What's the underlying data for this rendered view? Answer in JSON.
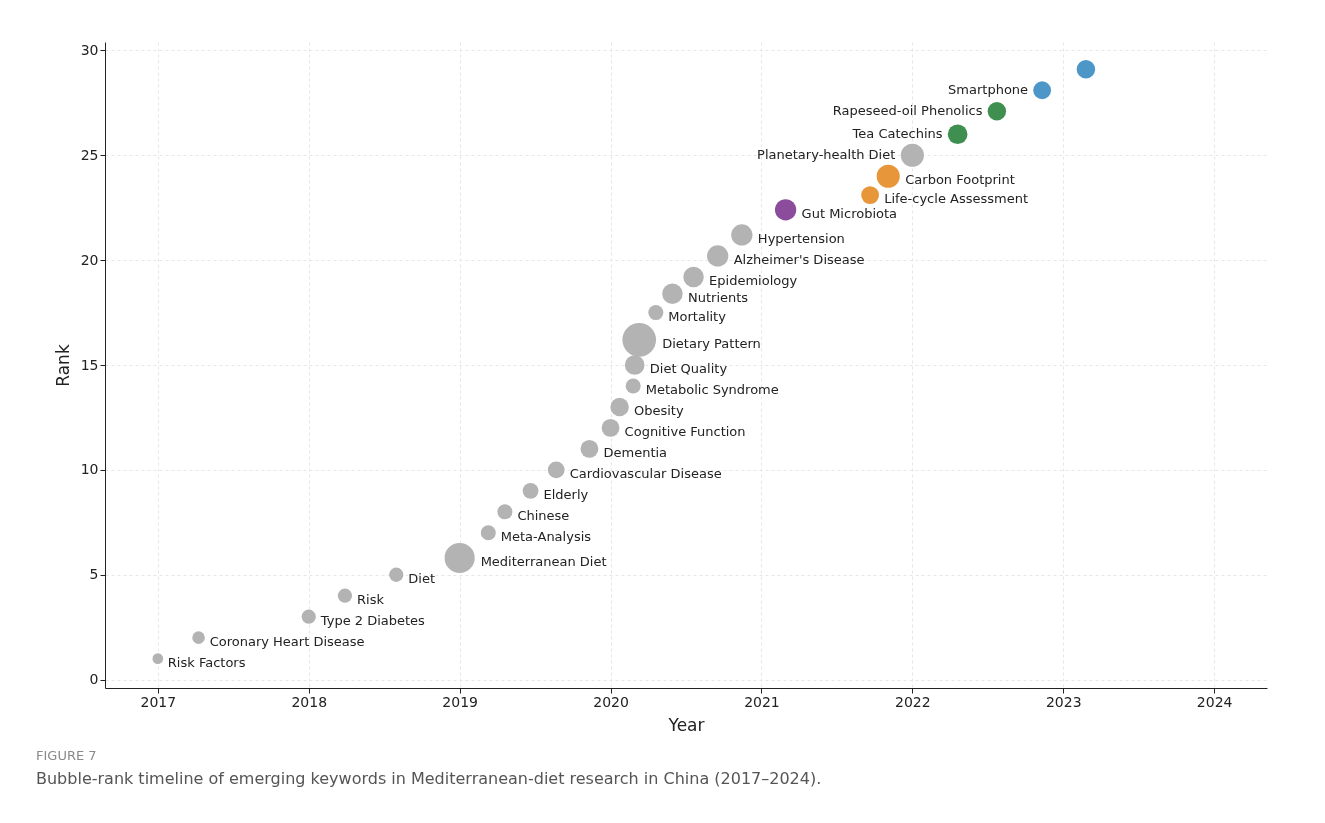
{
  "chart_data": {
    "type": "bubble",
    "xlabel": "Year",
    "ylabel": "Rank",
    "xlim": [
      2016.65,
      2024.35
    ],
    "xticks": [
      2017,
      2018,
      2019,
      2020,
      2021,
      2022,
      2023,
      2024
    ],
    "ylim": [
      -0.4,
      30.4
    ],
    "yticks": [
      0,
      5,
      10,
      15,
      20,
      25,
      30
    ],
    "grid": true,
    "marker": "circle",
    "x": [
      2017.0,
      2017.27,
      2018.0,
      2018.24,
      2018.58,
      2019.0,
      2019.19,
      2019.3,
      2019.47,
      2019.64,
      2019.86,
      2020.0,
      2020.06,
      2020.15,
      2020.16,
      2020.19,
      2020.3,
      2020.41,
      2020.55,
      2020.71,
      2020.87,
      2021.16,
      2021.72,
      2021.84,
      2022.0,
      2022.3,
      2022.56,
      2022.86,
      2023.15
    ],
    "values": [
      1,
      2,
      3,
      4,
      5,
      5.8,
      7,
      8,
      9,
      10,
      11,
      12,
      13,
      14,
      15,
      16.2,
      17.5,
      18.4,
      19.2,
      20.2,
      21.2,
      22.4,
      23.1,
      24,
      25,
      26,
      27.1,
      28.1,
      29.1
    ],
    "sizes": [
      0.1,
      0.14,
      0.18,
      0.18,
      0.18,
      0.8,
      0.2,
      0.2,
      0.22,
      0.25,
      0.28,
      0.28,
      0.3,
      0.2,
      0.34,
      1,
      0.2,
      0.37,
      0.37,
      0.4,
      0.4,
      0.4,
      0.28,
      0.47,
      0.47,
      0.34,
      0.3,
      0.28,
      0.3
    ],
    "colors": [
      "#b3b3b3",
      "#b3b3b3",
      "#b3b3b3",
      "#b3b3b3",
      "#b3b3b3",
      "#b3b3b3",
      "#b3b3b3",
      "#b3b3b3",
      "#b3b3b3",
      "#b3b3b3",
      "#b3b3b3",
      "#b3b3b3",
      "#b3b3b3",
      "#b3b3b3",
      "#b3b3b3",
      "#b3b3b3",
      "#b3b3b3",
      "#b3b3b3",
      "#b3b3b3",
      "#b3b3b3",
      "#b3b3b3",
      "#8b4c9b",
      "#e8963a",
      "#e8963a",
      "#b3b3b3",
      "#3f8f50",
      "#3f8f50",
      "#4c97c8",
      "#4c97c8"
    ],
    "annotations": [
      {
        "text": "Risk Factors",
        "x": 2017.0,
        "y": 1
      },
      {
        "text": "Coronary Heart Disease",
        "x": 2017.27,
        "y": 2
      },
      {
        "text": "Type 2 Diabetes",
        "x": 2018.0,
        "y": 3
      },
      {
        "text": "Risk",
        "x": 2018.24,
        "y": 4
      },
      {
        "text": "Diet",
        "x": 2018.58,
        "y": 5
      },
      {
        "text": "Mediterranean Diet",
        "x": 2019.0,
        "y": 5.8
      },
      {
        "text": "Meta-Analysis",
        "x": 2019.19,
        "y": 7
      },
      {
        "text": "Chinese",
        "x": 2019.3,
        "y": 8
      },
      {
        "text": "Elderly",
        "x": 2019.47,
        "y": 9
      },
      {
        "text": "Cardiovascular Disease",
        "x": 2019.64,
        "y": 10
      },
      {
        "text": "Dementia",
        "x": 2019.86,
        "y": 11
      },
      {
        "text": "Cognitive Function",
        "x": 2020.0,
        "y": 12
      },
      {
        "text": "Obesity",
        "x": 2020.06,
        "y": 13
      },
      {
        "text": "Metabolic Syndrome",
        "x": 2020.15,
        "y": 14
      },
      {
        "text": "Diet Quality",
        "x": 2020.16,
        "y": 15
      },
      {
        "text": "Dietary Pattern",
        "x": 2020.19,
        "y": 16.2
      },
      {
        "text": "Mortality",
        "x": 2020.3,
        "y": 17.5
      },
      {
        "text": "Nutrients",
        "x": 2020.41,
        "y": 18.4
      },
      {
        "text": "Epidemiology",
        "x": 2020.55,
        "y": 19.2
      },
      {
        "text": "Alzheimer's Disease",
        "x": 2020.71,
        "y": 20.2
      },
      {
        "text": "Hypertension",
        "x": 2020.87,
        "y": 21.2
      },
      {
        "text": "Gut Microbiota",
        "x": 2021.16,
        "y": 22.4
      },
      {
        "text": "Life-cycle Assessment",
        "x": 2021.72,
        "y": 23.1
      },
      {
        "text": "Carbon Footprint",
        "x": 2021.84,
        "y": 24
      },
      {
        "text": "Planetary-health Diet",
        "x": 2022.0,
        "y": 25
      },
      {
        "text": "Tea Catechins",
        "x": 2022.3,
        "y": 26
      },
      {
        "text": "Rapeseed-oil Phenolics",
        "x": 2022.56,
        "y": 27.1
      },
      {
        "text": "Smartphone",
        "x": 2022.86,
        "y": 28.1
      },
      "FIGURE 7",
      "Bubble-rank timeline of emerging keywords in Mediterranean-diet research in China (2017–2024)."
    ]
  }
}
